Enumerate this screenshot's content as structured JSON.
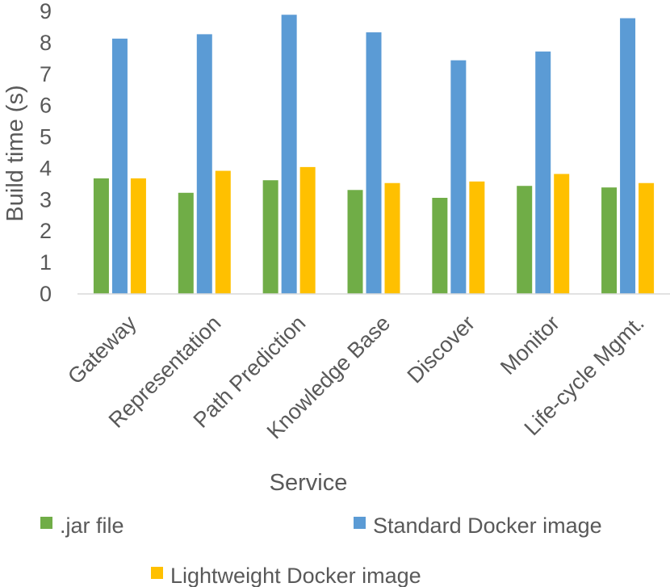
{
  "chart_data": {
    "type": "bar",
    "title": "",
    "xlabel": "Service",
    "ylabel": "Build time (s)",
    "ylim": [
      0,
      9
    ],
    "yticks": [
      0,
      1,
      2,
      3,
      4,
      5,
      6,
      7,
      8,
      9
    ],
    "grid": false,
    "legend_position": "bottom",
    "categories": [
      "Gateway",
      "Representation",
      "Path Prediction",
      "Knowledge Base",
      "Discover",
      "Monitor",
      "Life-cycle Mgmt."
    ],
    "series": [
      {
        "name": ".jar file",
        "color": "#70AD47",
        "values": [
          3.68,
          3.22,
          3.62,
          3.31,
          3.06,
          3.44,
          3.39
        ]
      },
      {
        "name": "Standard Docker image",
        "color": "#5B9BD5",
        "values": [
          8.13,
          8.27,
          8.89,
          8.33,
          7.44,
          7.72,
          8.78
        ]
      },
      {
        "name": "Lightweight Docker image",
        "color": "#FFC000",
        "values": [
          3.68,
          3.92,
          4.04,
          3.53,
          3.58,
          3.82,
          3.53
        ]
      }
    ]
  }
}
